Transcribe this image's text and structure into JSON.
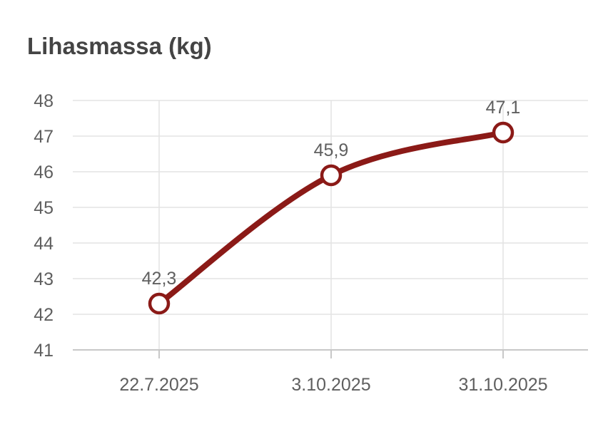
{
  "chart_data": {
    "type": "line",
    "title": "Lihasmassa (kg)",
    "xlabel": "",
    "ylabel": "",
    "categories": [
      "22.7.2025",
      "3.10.2025",
      "31.10.2025"
    ],
    "series": [
      {
        "values": [
          42.3,
          45.9,
          47.1
        ],
        "data_labels": [
          "42,3",
          "45,9",
          "47,1"
        ]
      }
    ],
    "ylim": [
      41,
      48
    ],
    "y_ticks": [
      41,
      42,
      43,
      44,
      45,
      46,
      47,
      48
    ],
    "y_tick_labels": [
      "41",
      "42",
      "43",
      "44",
      "45",
      "46",
      "47",
      "48"
    ],
    "grid": true,
    "smooth": true,
    "line_color": "#8b1a17",
    "marker_fill": "#ffffff",
    "marker_stroke": "#8b1a17",
    "gridline_color": "#e3e3e3",
    "axis_color": "#c8c8c8",
    "text_color": "#5f5f5f",
    "title_color": "#444444"
  }
}
